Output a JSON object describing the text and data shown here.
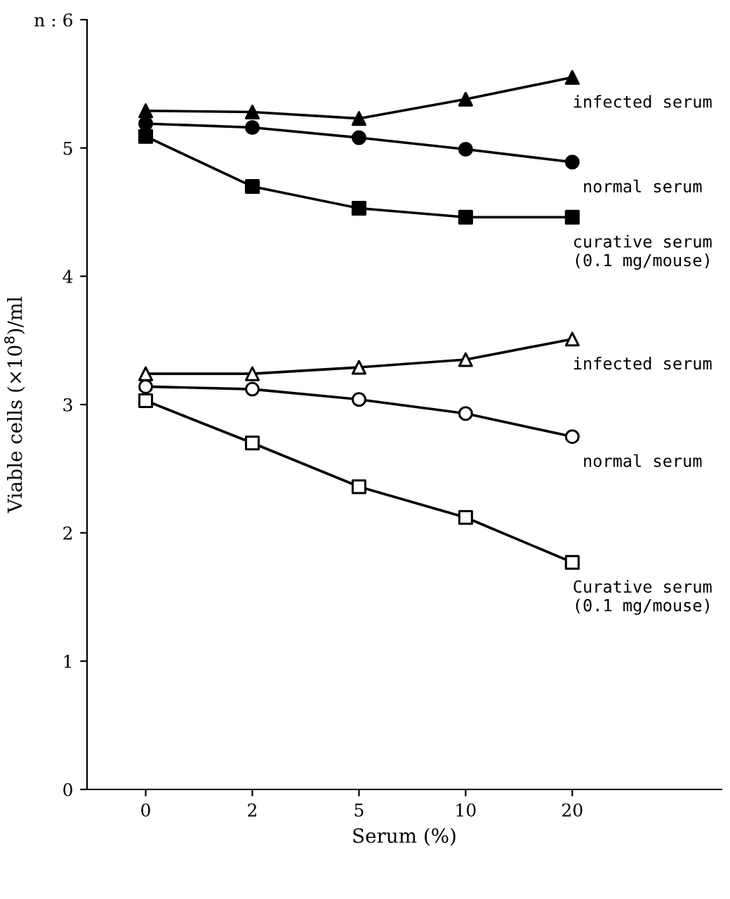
{
  "chart_data": {
    "type": "line",
    "xlabel": "Serum (%)",
    "ylabel": "Viable cells (×10$^{8}$)/ml",
    "categories": [
      "0",
      "2",
      "5",
      "10",
      "20"
    ],
    "ylim": [
      0,
      6
    ],
    "yticks": [
      0,
      1,
      2,
      3,
      4,
      5,
      {
        "value": 6,
        "label": "n : 6"
      }
    ],
    "grid": false,
    "legend": false,
    "line_style": "solid",
    "series": [
      {
        "name": "infected serum",
        "color": "#000000",
        "marker": "triangle",
        "colors": [
          "#000000",
          "#000000",
          "#000000",
          "#000000",
          "#000000"
        ],
        "values": [
          5.29,
          5.28,
          5.23,
          5.38,
          5.55
        ]
      },
      {
        "name": "normal serum",
        "color": "#000000",
        "marker": "circle",
        "colors": [
          "#000000",
          "#000000",
          "#000000",
          "#000000",
          "#000000"
        ],
        "values": [
          5.19,
          5.16,
          5.08,
          4.99,
          4.89
        ]
      },
      {
        "name": "curative serum\n(0.1 mg/mouse)",
        "color": "#000000",
        "marker": "square",
        "colors": [
          "#000000",
          "#000000",
          "#000000",
          "#000000",
          "#000000"
        ],
        "values": [
          5.09,
          4.7,
          4.53,
          4.46,
          4.46
        ]
      },
      {
        "name": "infected serum",
        "color": "#000000",
        "marker": "triangle",
        "colors": [
          "#ffffff",
          "#ffffff",
          "#ffffff",
          "#ffffff",
          "#ffffff"
        ],
        "values": [
          3.24,
          3.24,
          3.29,
          3.35,
          3.51
        ]
      },
      {
        "name": "normal serum",
        "color": "#000000",
        "marker": "circle",
        "colors": [
          "#ffffff",
          "#ffffff",
          "#ffffff",
          "#ffffff",
          "#ffffff"
        ],
        "values": [
          3.14,
          3.12,
          3.04,
          2.93,
          2.75
        ]
      },
      {
        "name": "Curative serum\n(0.1 mg/mouse)",
        "color": "#000000",
        "marker": "square",
        "colors": [
          "#ffffff",
          "#ffffff",
          "#ffffff",
          "#ffffff",
          "#ffffff"
        ],
        "values": [
          3.03,
          2.7,
          2.36,
          2.12,
          1.77
        ]
      }
    ]
  }
}
